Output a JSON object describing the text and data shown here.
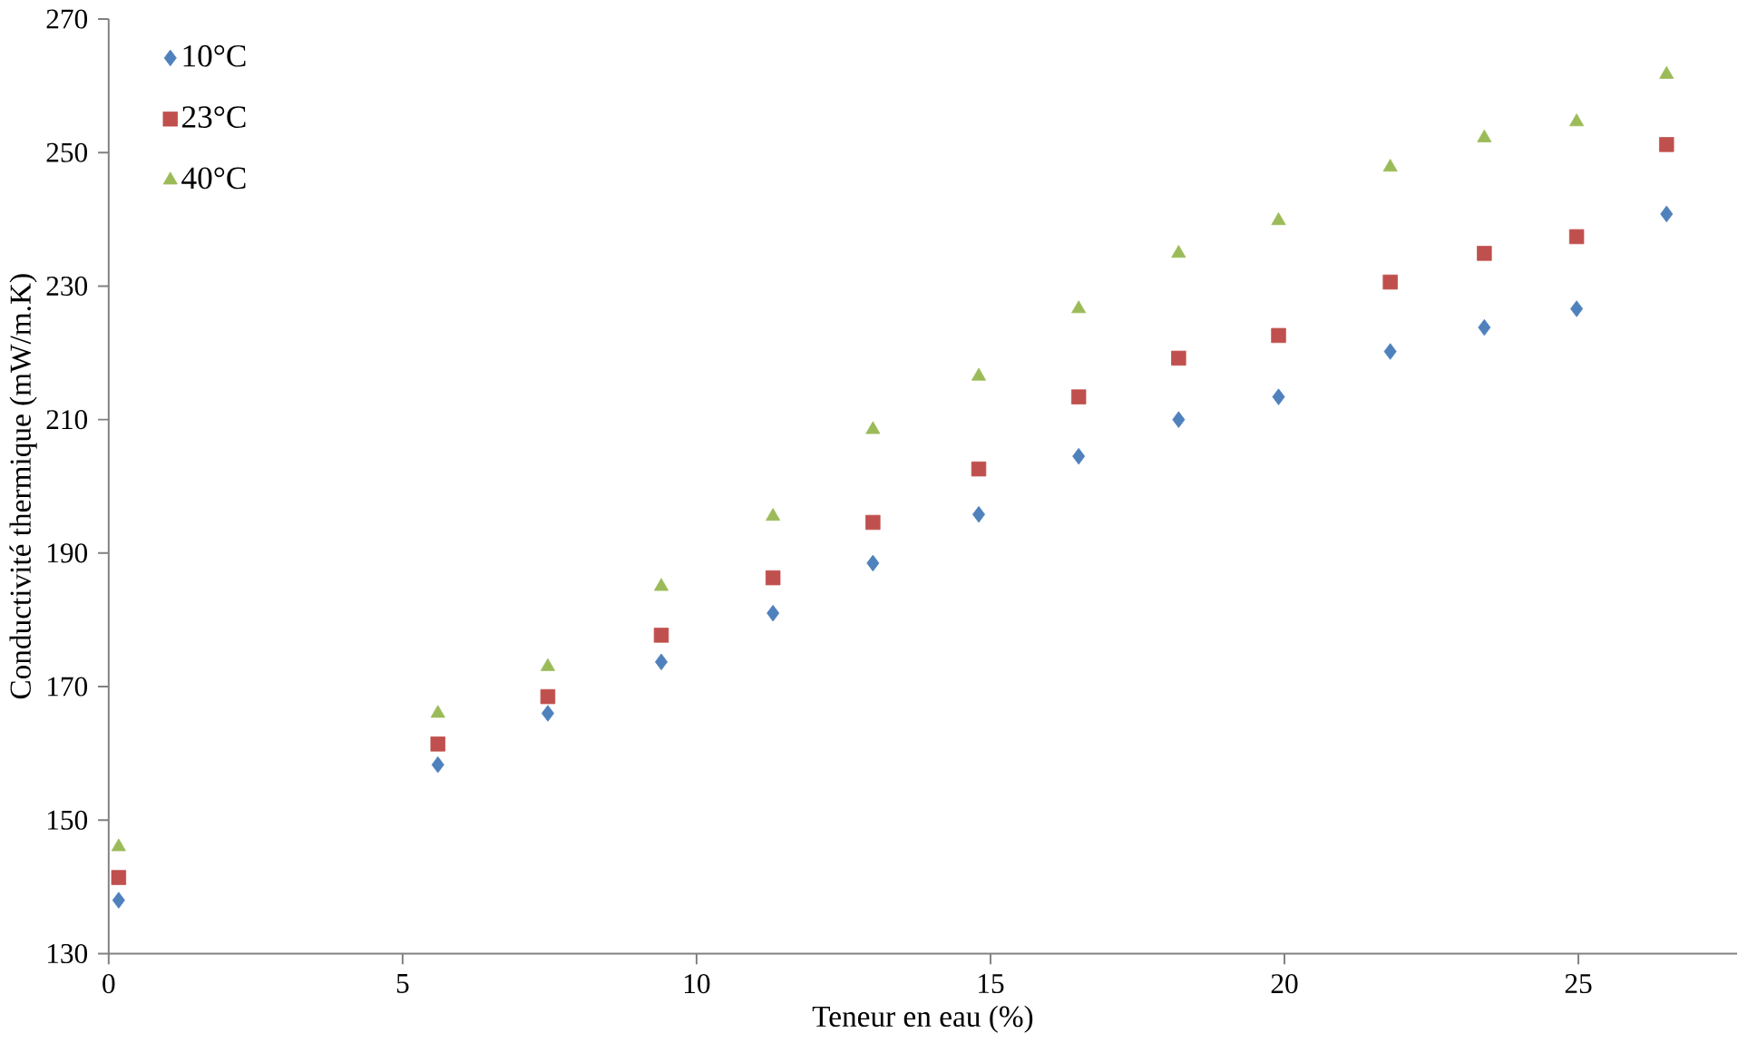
{
  "chart_data": {
    "type": "scatter",
    "xlabel": "Teneur en eau (%)",
    "ylabel": "Conductivité thermique (mW/m.K)",
    "x": [
      0.17,
      5.6,
      7.47,
      9.4,
      11.3,
      13.0,
      14.8,
      16.5,
      18.2,
      19.9,
      21.8,
      23.4,
      24.97,
      26.5
    ],
    "series": [
      {
        "name": "10°C",
        "color": "#4f81bd",
        "marker": "diamond",
        "values": [
          138,
          158.3,
          166,
          173.7,
          181,
          188.5,
          195.8,
          204.5,
          210,
          213.4,
          220.2,
          223.8,
          226.6,
          240.8
        ]
      },
      {
        "name": "23°C",
        "color": "#c0504d",
        "marker": "square",
        "values": [
          141.4,
          161.4,
          168.5,
          177.7,
          186.3,
          194.6,
          202.6,
          213.4,
          219.2,
          222.6,
          230.6,
          234.9,
          237.4,
          251.2
        ]
      },
      {
        "name": "40°C",
        "color": "#9bbb59",
        "marker": "triangle",
        "values": [
          146,
          166,
          173,
          185,
          195.5,
          208.5,
          216.5,
          226.6,
          234.9,
          239.8,
          247.8,
          252.2,
          254.6,
          261.7
        ]
      }
    ],
    "xlim": [
      0,
      27.7
    ],
    "ylim": [
      130,
      270
    ],
    "xticks": [
      0,
      5,
      10,
      15,
      20,
      25
    ],
    "yticks": [
      130,
      150,
      170,
      190,
      210,
      230,
      250,
      270
    ],
    "grid": false,
    "legend": "top left"
  }
}
